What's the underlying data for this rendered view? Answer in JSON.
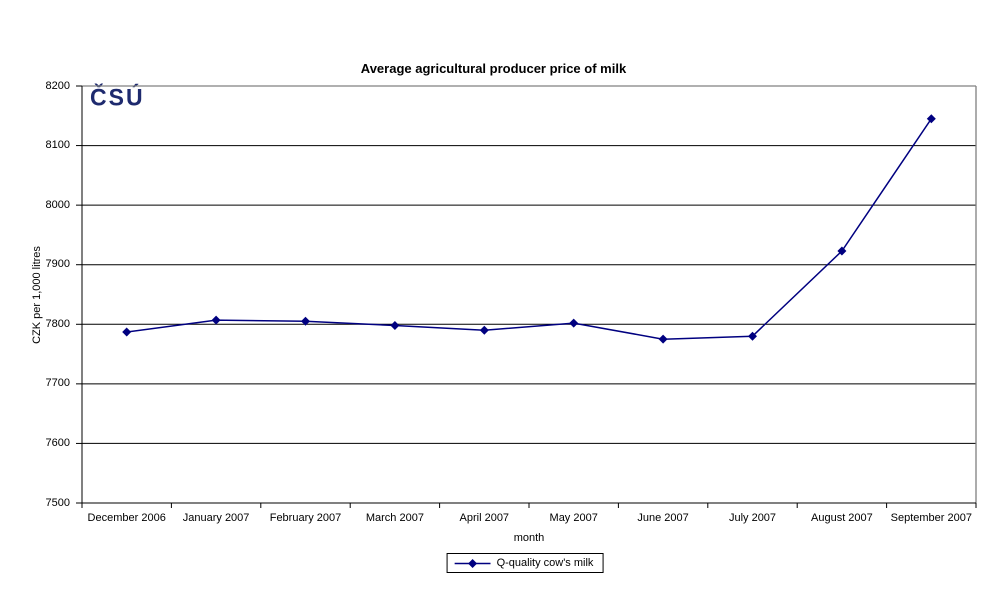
{
  "logo": {
    "text": "ČSÚ",
    "color": "#1e2a6e"
  },
  "chart_data": {
    "type": "line",
    "title": "Average agricultural producer price of milk",
    "xlabel": "month",
    "ylabel": "CZK per 1,000 litres",
    "categories": [
      "December 2006",
      "January 2007",
      "February 2007",
      "March 2007",
      "April 2007",
      "May 2007",
      "June 2007",
      "July 2007",
      "August 2007",
      "September 2007"
    ],
    "series": [
      {
        "name": "Q-quality cow's milk",
        "values": [
          7787,
          7807,
          7805,
          7798,
          7790,
          7802,
          7775,
          7780,
          7923,
          8145
        ],
        "color": "#000080",
        "marker": "diamond"
      }
    ],
    "ylim": [
      7500,
      8200
    ],
    "yticks": [
      7500,
      7600,
      7700,
      7800,
      7900,
      8000,
      8100,
      8200
    ],
    "grid": true,
    "legend_position": "bottom-center",
    "colors": {
      "gridline": "#000000",
      "plot_border": "#808080",
      "axis": "#000000",
      "text": "#000000"
    }
  }
}
